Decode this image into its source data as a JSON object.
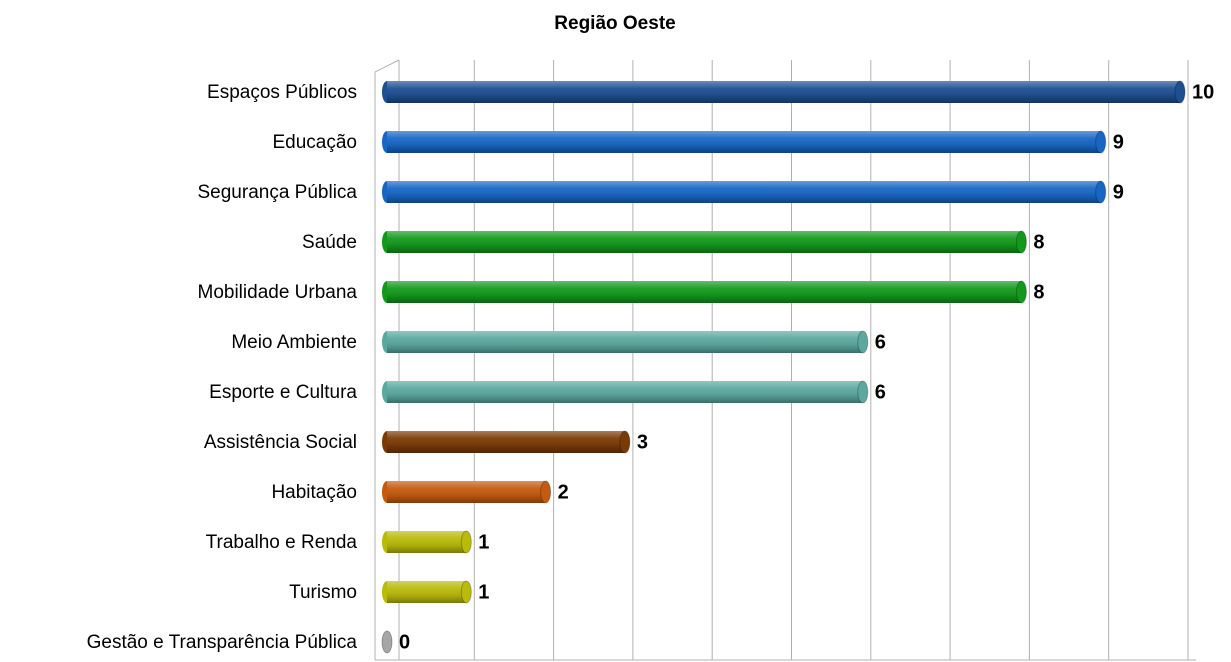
{
  "chart_data": {
    "type": "barh",
    "title": "Região Oeste",
    "categories": [
      "Espaços Públicos",
      "Educação",
      "Segurança Pública",
      "Saúde",
      "Mobilidade Urbana",
      "Meio Ambiente",
      "Esporte e Cultura",
      "Assistência Social",
      "Habitação",
      "Trabalho e Renda",
      "Turismo",
      "Gestão e Transparência Pública"
    ],
    "values": [
      10,
      9,
      9,
      8,
      8,
      6,
      6,
      3,
      2,
      1,
      1,
      0
    ],
    "colors": [
      "#1d4f91",
      "#1766c4",
      "#1766c4",
      "#12991c",
      "#12991c",
      "#5aa89f",
      "#5aa89f",
      "#7a3a05",
      "#c45a0e",
      "#b9ba0a",
      "#b9ba0a",
      "#a6a6a6"
    ],
    "xlim": [
      0,
      10
    ],
    "xticks": [
      0,
      1,
      2,
      3,
      4,
      5,
      6,
      7,
      8,
      9,
      10
    ],
    "grid": true
  }
}
